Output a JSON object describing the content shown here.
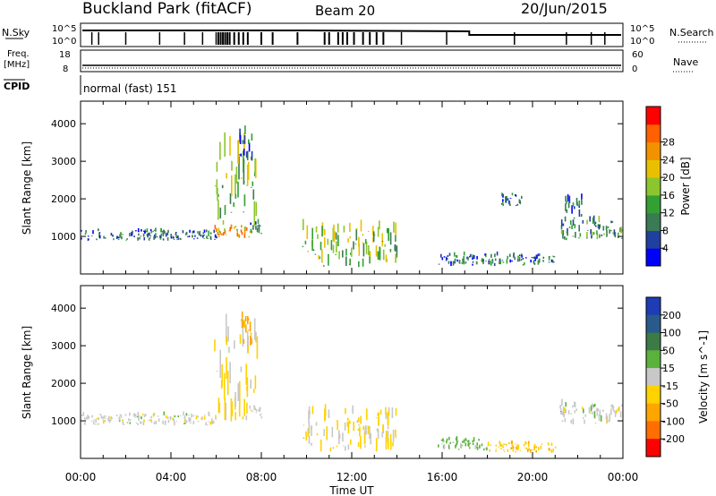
{
  "header": {
    "title": "Buckland Park (fitACF)",
    "beam": "Beam 20",
    "date": "20/Jun/2015"
  },
  "strip_panels": {
    "nsky_label": "N.Sky",
    "nsearch_label": "N.Search",
    "left_tick_top": "10^5",
    "left_tick_bottom": "10^0",
    "right_tick_top": "10^5",
    "right_tick_bottom": "10^0",
    "freq_label_1": "Freq.",
    "freq_label_2": "[MHz]",
    "freq_tick_top": "18",
    "freq_tick_bottom": "8",
    "nave_label": "Nave",
    "nave_tick_top": "60",
    "nave_tick_bottom": "0",
    "cpid_label": "CPID",
    "cpid_value": "normal (fast) 151"
  },
  "time_axis": {
    "label": "Time UT",
    "ticks": [
      "00:00",
      "04:00",
      "08:00",
      "12:00",
      "16:00",
      "20:00",
      "00:00"
    ]
  },
  "power_colorbar": {
    "label": "Power [dB]",
    "ticks": [
      "4",
      "8",
      "12",
      "16",
      "20",
      "24",
      "28"
    ],
    "colors": [
      "#0000ff",
      "#2040a0",
      "#3a7a55",
      "#33a033",
      "#8cc62e",
      "#e8c000",
      "#f39200",
      "#ff6000",
      "#ff0000"
    ]
  },
  "velocity_colorbar": {
    "label": "Velocity [m s^-1]",
    "ticks": [
      "200",
      "100",
      "50",
      "15",
      "-15",
      "-50",
      "-100",
      "-200"
    ],
    "colors": [
      "#1e3cb4",
      "#285a8c",
      "#3c7a46",
      "#5ab23c",
      "#c8c8c8",
      "#ffd200",
      "#ffa500",
      "#ff6e00",
      "#ff0000"
    ]
  },
  "chart_data": [
    {
      "type": "heatmap",
      "name": "power",
      "ylabel": "Slant Range [km]",
      "ylim": [
        0,
        4600
      ],
      "yticks": [
        1000,
        2000,
        3000,
        4000
      ],
      "xlim_hours": [
        0,
        24
      ],
      "regions": [
        {
          "t0": 0.0,
          "t1": 4.0,
          "r0": 880,
          "r1": 1150,
          "value": 8
        },
        {
          "t0": 4.0,
          "t1": 6.0,
          "r0": 900,
          "r1": 1120,
          "value": 8
        },
        {
          "t0": 5.9,
          "t1": 7.5,
          "r0": 950,
          "r1": 1250,
          "value": 26
        },
        {
          "t0": 5.9,
          "t1": 7.8,
          "r0": 1250,
          "r1": 3200,
          "value": 16
        },
        {
          "t0": 7.0,
          "t1": 7.6,
          "r0": 3000,
          "r1": 3750,
          "value": 8
        },
        {
          "t0": 7.5,
          "t1": 8.0,
          "r0": 1050,
          "r1": 1400,
          "value": 8
        },
        {
          "t0": 9.8,
          "t1": 14.0,
          "r0": 180,
          "r1": 1200,
          "value": 16
        },
        {
          "t0": 15.8,
          "t1": 21.0,
          "r0": 200,
          "r1": 500,
          "value": 8
        },
        {
          "t0": 18.5,
          "t1": 19.5,
          "r0": 1800,
          "r1": 2100,
          "value": 8
        },
        {
          "t0": 21.2,
          "t1": 24.0,
          "r0": 900,
          "r1": 1400,
          "value": 12
        },
        {
          "t0": 21.4,
          "t1": 22.2,
          "r0": 1400,
          "r1": 2000,
          "value": 8
        }
      ]
    },
    {
      "type": "heatmap",
      "name": "velocity",
      "ylabel": "Slant Range [km]",
      "ylim": [
        0,
        4600
      ],
      "yticks": [
        1000,
        2000,
        3000,
        4000
      ],
      "xlim_hours": [
        0,
        24
      ],
      "regions": [
        {
          "t0": 0.0,
          "t1": 6.0,
          "r0": 880,
          "r1": 1150,
          "value": 0
        },
        {
          "t0": 5.9,
          "t1": 7.8,
          "r0": 950,
          "r1": 3200,
          "value": -20
        },
        {
          "t0": 7.0,
          "t1": 7.6,
          "r0": 3000,
          "r1": 3750,
          "value": -60
        },
        {
          "t0": 7.5,
          "t1": 8.0,
          "r0": 1050,
          "r1": 1400,
          "value": 0
        },
        {
          "t0": 9.8,
          "t1": 14.0,
          "r0": 180,
          "r1": 1200,
          "value": -20
        },
        {
          "t0": 15.8,
          "t1": 18.0,
          "r0": 200,
          "r1": 500,
          "value": 30
        },
        {
          "t0": 18.0,
          "t1": 21.0,
          "r0": 150,
          "r1": 400,
          "value": -40
        },
        {
          "t0": 21.2,
          "t1": 24.0,
          "r0": 900,
          "r1": 1400,
          "value": 0
        }
      ]
    }
  ]
}
